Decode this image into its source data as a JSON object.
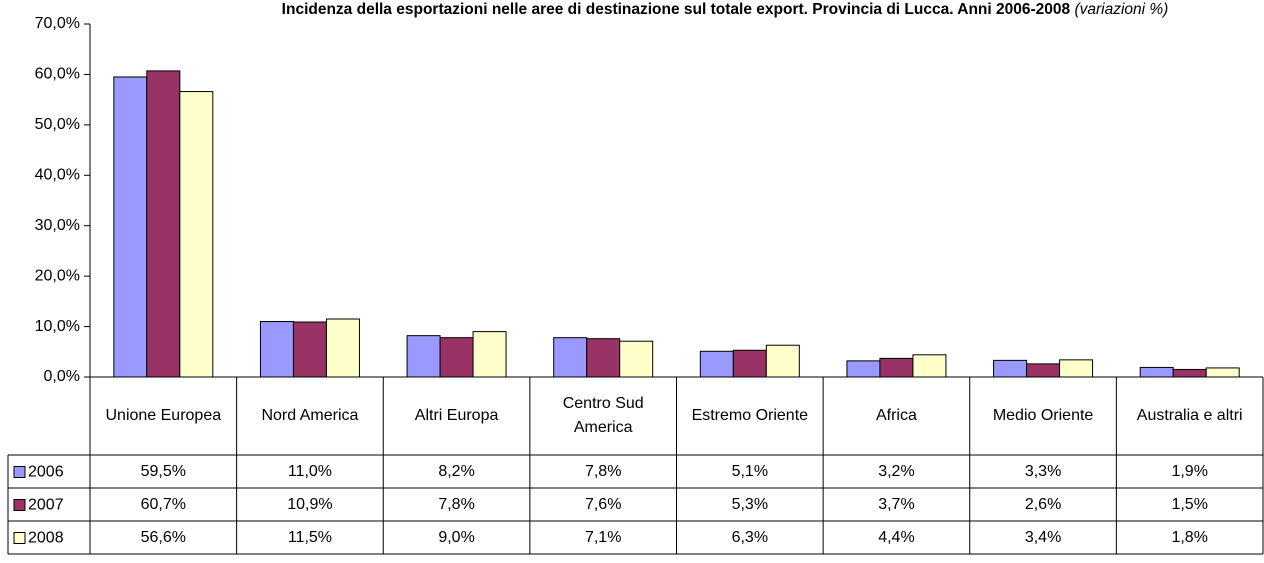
{
  "chart_data": {
    "type": "bar",
    "title": "Incidenza della esportazioni nelle aree di destinazione sul totale export. Provincia di Lucca. Anni 2006-2008",
    "title_note": "(variazioni %)",
    "categories": [
      "Unione Europea",
      "Nord America",
      "Altri Europa",
      "Centro Sud America",
      "Estremo Oriente",
      "Africa",
      "Medio Oriente",
      "Australia e altri"
    ],
    "series": [
      {
        "name": "2006",
        "color": "#9999ff",
        "values": [
          59.5,
          11.0,
          8.2,
          7.8,
          5.1,
          3.2,
          3.3,
          1.9
        ],
        "value_labels": [
          "59,5%",
          "11,0%",
          "8,2%",
          "7,8%",
          "5,1%",
          "3,2%",
          "3,3%",
          "1,9%"
        ]
      },
      {
        "name": "2007",
        "color": "#993366",
        "values": [
          60.7,
          10.9,
          7.8,
          7.6,
          5.3,
          3.7,
          2.6,
          1.5
        ],
        "value_labels": [
          "60,7%",
          "10,9%",
          "7,8%",
          "7,6%",
          "5,3%",
          "3,7%",
          "2,6%",
          "1,5%"
        ]
      },
      {
        "name": "2008",
        "color": "#ffffcc",
        "values": [
          56.6,
          11.5,
          9.0,
          7.1,
          6.3,
          4.4,
          3.4,
          1.8
        ],
        "value_labels": [
          "56,6%",
          "11,5%",
          "9,0%",
          "7,1%",
          "6,3%",
          "4,4%",
          "3,4%",
          "1,8%"
        ]
      }
    ],
    "ylim": [
      0,
      70
    ],
    "yticks": [
      {
        "value": 0,
        "label": "0,0%"
      },
      {
        "value": 10,
        "label": "10,0%"
      },
      {
        "value": 20,
        "label": "20,0%"
      },
      {
        "value": 30,
        "label": "30,0%"
      },
      {
        "value": 40,
        "label": "40,0%"
      },
      {
        "value": 50,
        "label": "50,0%"
      },
      {
        "value": 60,
        "label": "60,0%"
      },
      {
        "value": 70,
        "label": "70,0%"
      }
    ],
    "grid": false
  }
}
